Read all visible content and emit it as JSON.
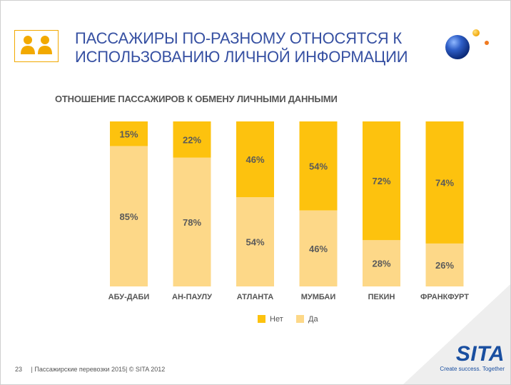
{
  "slide": {
    "title_lines": [
      "ПАССАЖИРЫ ПО-РАЗНОМУ ОТНОСЯТСЯ К",
      "ИСПОЛЬЗОВАНИЮ ЛИЧНОЙ ИНФОРМАЦИИ"
    ],
    "header_icon": "two-people-icon",
    "decor": "blue-orb-logo",
    "footer": {
      "page_number": "23",
      "text": "| Пассажирские перевозки 2015|  © SITA 2012"
    },
    "brand": {
      "name": "SITA",
      "tagline": "Create success. Together"
    }
  },
  "colors": {
    "net": "#fdc20e",
    "da": "#fdd888",
    "title": "#3650a2",
    "brand": "#1a4fa0"
  },
  "chart_data": {
    "type": "bar",
    "stacked": true,
    "orientation": "vertical",
    "title": "ОТНОШЕНИЕ ПАССАЖИРОВ К ОБМЕНУ ЛИЧНЫМИ ДАННЫМИ",
    "categories": [
      "АБУ-ДАБИ",
      "АН-ПАУЛУ",
      "АТЛАНТА",
      "МУМБАИ",
      "ПЕКИН",
      "ФРАНКФУРТ"
    ],
    "series": [
      {
        "name": "Нет",
        "values": [
          15,
          22,
          46,
          54,
          72,
          74
        ],
        "labels": [
          "15%",
          "22%",
          "46%",
          "54%",
          "72%",
          "74%"
        ]
      },
      {
        "name": "Да",
        "values": [
          85,
          78,
          54,
          46,
          28,
          26
        ],
        "labels": [
          "85%",
          "78%",
          "54%",
          "46%",
          "28%",
          "26%"
        ]
      }
    ],
    "ylim": [
      0,
      100
    ],
    "y_unit": "%",
    "legend_position": "bottom-center",
    "grid": false
  }
}
